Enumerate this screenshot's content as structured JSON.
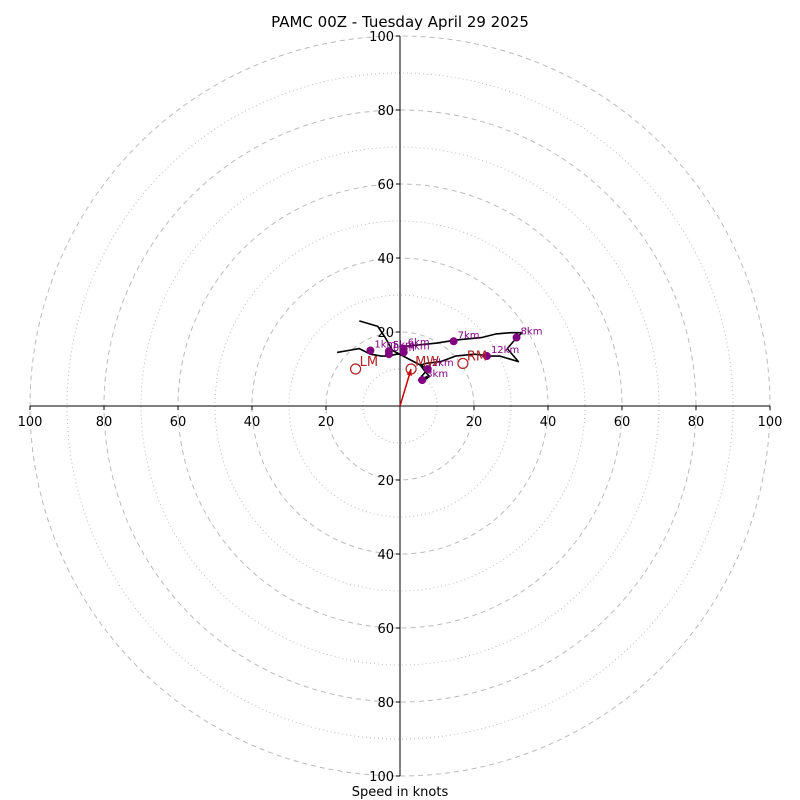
{
  "chart_data": {
    "type": "line",
    "title": "PAMC 00Z - Tuesday April 29 2025",
    "xlabel": "Speed in knots",
    "ylabel": "",
    "xlim": [
      -100,
      100
    ],
    "ylim": [
      -100,
      100
    ],
    "ring_major": [
      20,
      40,
      60,
      80,
      100
    ],
    "ring_minor": [
      10,
      30,
      50,
      70,
      90
    ],
    "tick_values": [
      20,
      40,
      60,
      80,
      100
    ],
    "tick_labels": [
      "20",
      "40",
      "60",
      "80",
      "100"
    ],
    "grid": true,
    "colors": {
      "hodograph": "#000000",
      "height_marker": "#800080",
      "storm_motion": "#b22222",
      "shear_vector": "#cc0000",
      "grid": "#bbbbbb"
    },
    "series": [
      {
        "values": [
          [
            -17,
            14.5
          ],
          [
            -14,
            15
          ],
          [
            -11,
            15.5
          ],
          [
            -8,
            14
          ],
          [
            -5,
            13.5
          ],
          [
            -3,
            13.5
          ],
          [
            -1,
            14
          ],
          [
            0,
            14
          ],
          [
            1,
            14
          ],
          [
            0,
            16
          ],
          [
            5,
            16.5
          ],
          [
            10,
            17
          ],
          [
            15,
            17.8
          ],
          [
            22,
            18.5
          ],
          [
            26,
            19.5
          ],
          [
            30,
            19.8
          ],
          [
            33,
            19.8
          ],
          [
            31.5,
            18.4
          ],
          [
            29,
            15.5
          ],
          [
            32,
            12
          ],
          [
            27,
            13.5
          ],
          [
            24,
            13.5
          ],
          [
            22,
            13.8
          ],
          [
            20,
            14
          ],
          [
            15,
            13.5
          ],
          [
            11,
            12
          ],
          [
            7,
            11.5
          ],
          [
            5.5,
            11
          ],
          [
            7,
            9
          ],
          [
            8,
            8
          ],
          [
            6,
            6.5
          ],
          [
            7.5,
            8
          ],
          [
            5,
            7
          ],
          [
            7.5,
            10
          ],
          [
            -2,
            15
          ],
          [
            -4,
            18.5
          ],
          [
            -6,
            21.5
          ],
          [
            -11,
            23
          ]
        ]
      }
    ],
    "height_markers": [
      {
        "label": "2km",
        "u": 7.5,
        "v": 10
      },
      {
        "label": "3km",
        "u": 6,
        "v": 7
      },
      {
        "label": "4km",
        "u": 1,
        "v": 14.5
      },
      {
        "label": "5km",
        "u": -3,
        "v": 14.8
      },
      {
        "label": "6km",
        "u": 1,
        "v": 15.5
      },
      {
        "label": "7km",
        "u": 14.5,
        "v": 17.5
      },
      {
        "label": "8km",
        "u": 31.5,
        "v": 18.5
      },
      {
        "label": "12km",
        "u": 23.5,
        "v": 13.5
      },
      {
        "label": "1km",
        "u": -8,
        "v": 15
      },
      {
        "label": "0km",
        "u": -3,
        "v": 14
      }
    ],
    "storm_motion": [
      {
        "label": "LM",
        "u": -12,
        "v": 10
      },
      {
        "label": "MW",
        "u": 3,
        "v": 10
      },
      {
        "label": "RM",
        "u": 17,
        "v": 11.5
      }
    ],
    "shear_vector": {
      "from": [
        0,
        0
      ],
      "to": [
        3,
        10
      ]
    }
  }
}
